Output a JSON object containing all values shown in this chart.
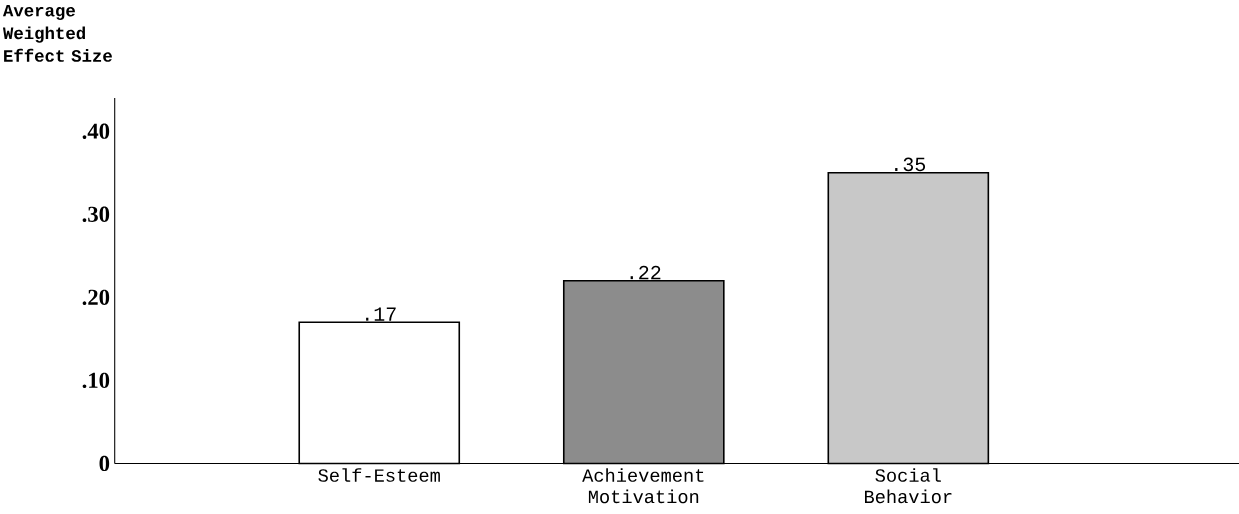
{
  "chart_data": {
    "type": "bar",
    "ylabel": "Average Weighted Effect Size",
    "categories": [
      "Self-Esteem",
      "Achievement Motivation",
      "Social Behavior"
    ],
    "values": [
      0.17,
      0.22,
      0.35
    ],
    "value_labels": [
      ".17",
      ".22",
      ".35"
    ],
    "colors": [
      "#ffffff",
      "#8c8c8c",
      "#c8c8c8"
    ],
    "ylim": [
      0,
      0.44
    ],
    "yticks": [
      {
        "value": 0,
        "label": "0"
      },
      {
        "value": 0.1,
        "label": ".10"
      },
      {
        "value": 0.2,
        "label": ".20"
      },
      {
        "value": 0.3,
        "label": ".30"
      },
      {
        "value": 0.4,
        "label": ".40"
      }
    ],
    "grid": false
  }
}
